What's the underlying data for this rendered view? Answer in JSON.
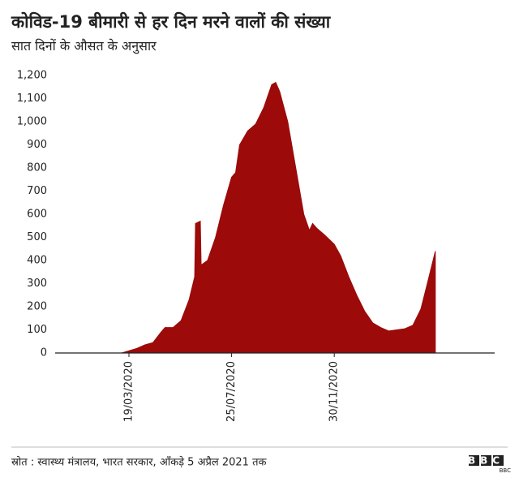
{
  "chart_data": {
    "type": "area",
    "title": "कोविड-19 बीमारी से हर दिन मरने वालों की संख्या",
    "subtitle": "सात दिनों के औसत के अनुसार",
    "source": "स्रोत : स्वास्थ्य मंत्रालय, भारत सरकार, आँकड़े 5 अप्रैल 2021 तक",
    "logo": "BBC",
    "color": "#9c0a0a",
    "x": [
      "10/03/2020",
      "29/03/2020",
      "08/04/2020",
      "18/04/2020",
      "28/04/2020",
      "03/05/2020",
      "13/05/2020",
      "23/05/2020",
      "02/06/2020",
      "09/06/2020",
      "10/06/2020",
      "16/06/2020",
      "17/06/2020",
      "25/06/2020",
      "05/07/2020",
      "15/07/2020",
      "25/07/2020",
      "30/07/2020",
      "04/08/2020",
      "14/08/2020",
      "24/08/2020",
      "03/09/2020",
      "13/09/2020",
      "18/09/2020",
      "23/09/2020",
      "03/10/2020",
      "13/10/2020",
      "23/10/2020",
      "30/10/2020",
      "03/11/2020",
      "08/11/2020",
      "18/11/2020",
      "30/11/2020",
      "08/12/2020",
      "18/12/2020",
      "28/12/2020",
      "07/01/2021",
      "17/01/2021",
      "27/01/2021",
      "06/02/2021",
      "16/02/2021",
      "26/02/2021",
      "08/03/2021",
      "18/03/2021",
      "26/03/2021",
      "05/04/2021"
    ],
    "values": [
      0,
      20,
      35,
      45,
      90,
      110,
      110,
      140,
      230,
      330,
      560,
      570,
      380,
      400,
      500,
      640,
      760,
      780,
      900,
      960,
      990,
      1060,
      1160,
      1170,
      1130,
      1000,
      800,
      600,
      530,
      560,
      540,
      510,
      470,
      420,
      330,
      250,
      180,
      130,
      110,
      95,
      100,
      105,
      120,
      190,
      300,
      440
    ],
    "xlim": [
      "18/12/2019",
      "18/06/2021"
    ],
    "xticks": [
      "19/03/2020",
      "25/07/2020",
      "30/11/2020"
    ],
    "ylim": [
      0,
      1200
    ],
    "yticks": [
      0,
      100,
      200,
      300,
      400,
      500,
      600,
      700,
      800,
      900,
      {
        "value": 1000,
        "label": "1,000"
      },
      {
        "value": 1100,
        "label": "1,100"
      },
      {
        "value": 1200,
        "label": "1,200"
      }
    ]
  }
}
